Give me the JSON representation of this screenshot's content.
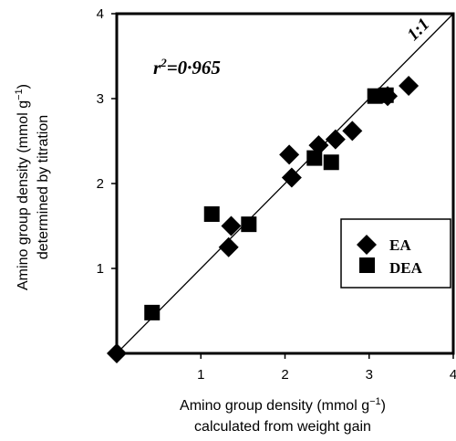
{
  "chart_data": {
    "type": "scatter",
    "xlim": [
      0,
      4
    ],
    "ylim": [
      0,
      4
    ],
    "xticks": [
      "1",
      "2",
      "3",
      "4"
    ],
    "yticks": [
      "1",
      "2",
      "3",
      "4"
    ],
    "x_label_line1_prefix": "Amino group density (mmol g",
    "x_label_sup": "−1",
    "x_label_line1_suffix": ")",
    "x_label_line2": "calculated from weight gain",
    "y_label_line1_prefix": "Amino group density (mmol g",
    "y_label_sup": "−1",
    "y_label_line1_suffix": ")",
    "y_label_line2": "determined by titration",
    "reference_line": {
      "label": "1:1",
      "x": [
        0,
        4
      ],
      "y": [
        0,
        4
      ]
    },
    "annotation": {
      "r": "r",
      "sup": "2",
      "rest": "=0·965"
    },
    "legend": {
      "position": "lower-right"
    },
    "series": [
      {
        "name": "EA",
        "marker": "diamond",
        "points": [
          [
            0.0,
            0.0
          ],
          [
            1.33,
            1.25
          ],
          [
            1.36,
            1.5
          ],
          [
            2.05,
            2.34
          ],
          [
            2.08,
            2.07
          ],
          [
            2.4,
            2.45
          ],
          [
            2.6,
            2.52
          ],
          [
            2.8,
            2.62
          ],
          [
            3.22,
            3.03
          ],
          [
            3.47,
            3.15
          ]
        ]
      },
      {
        "name": "DEA",
        "marker": "square",
        "points": [
          [
            0.42,
            0.48
          ],
          [
            1.13,
            1.64
          ],
          [
            1.57,
            1.52
          ],
          [
            2.35,
            2.3
          ],
          [
            2.55,
            2.25
          ],
          [
            3.07,
            3.03
          ],
          [
            3.2,
            3.04
          ]
        ]
      }
    ]
  }
}
